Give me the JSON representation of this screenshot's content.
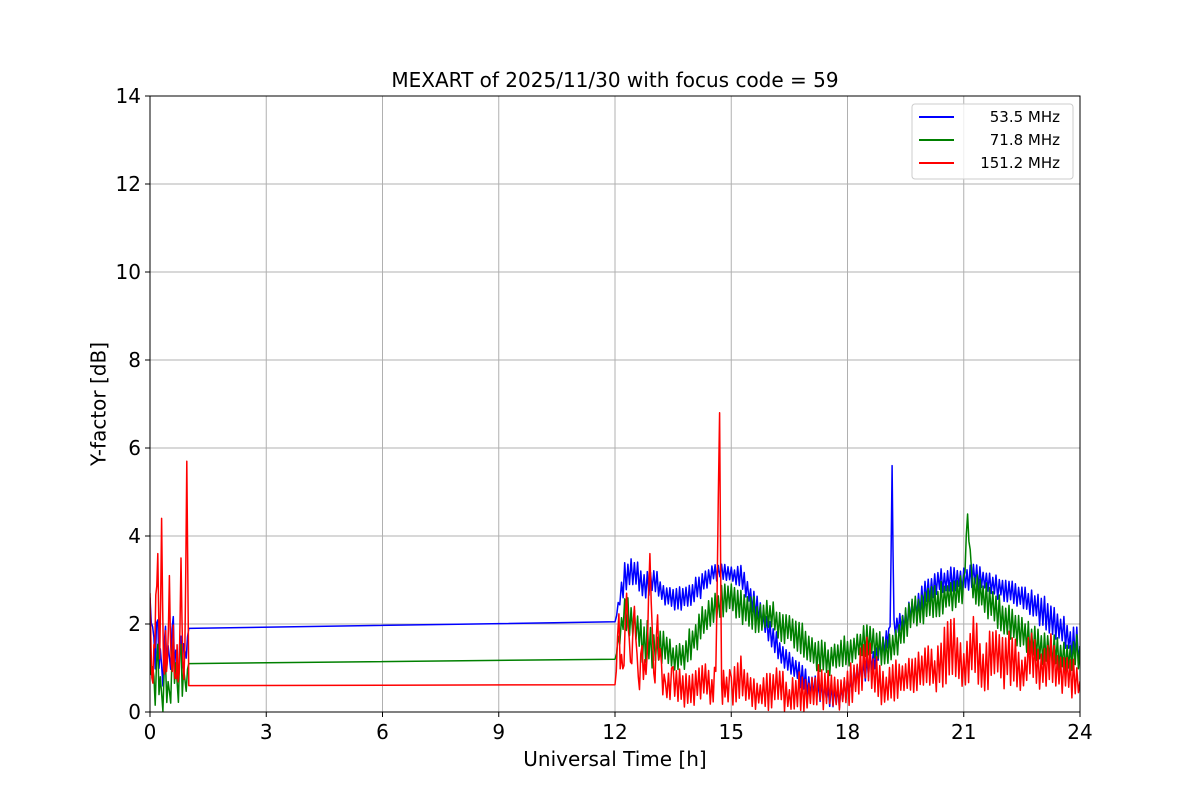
{
  "chart_data": {
    "type": "line",
    "title": "MEXART of 2025/11/30 with focus code = 59",
    "xlabel": "Universal Time [h]",
    "ylabel": "Y-factor [dB]",
    "xlim": [
      0,
      24
    ],
    "ylim": [
      0,
      14
    ],
    "xticks": [
      0,
      3,
      6,
      9,
      12,
      15,
      18,
      21,
      24
    ],
    "yticks": [
      0,
      2,
      4,
      6,
      8,
      10,
      12,
      14
    ],
    "grid": true,
    "legend_position": "top-right",
    "series": [
      {
        "name": "53.5 MHz",
        "color": "#0000ff",
        "x": [
          0.0,
          0.1,
          0.2,
          0.3,
          0.4,
          0.5,
          0.6,
          0.7,
          0.8,
          0.9,
          1.0,
          12.0,
          12.25,
          12.5,
          12.75,
          13.0,
          13.25,
          13.5,
          13.75,
          14.0,
          14.25,
          14.5,
          14.75,
          15.0,
          15.25,
          15.5,
          15.75,
          16.0,
          16.25,
          16.5,
          16.75,
          17.0,
          17.25,
          17.5,
          17.75,
          18.0,
          18.25,
          18.5,
          18.75,
          19.0,
          19.1,
          19.15,
          19.2,
          19.5,
          19.75,
          20.0,
          20.25,
          20.5,
          20.75,
          21.0,
          21.25,
          21.5,
          21.75,
          22.0,
          22.25,
          22.5,
          22.75,
          23.0,
          23.25,
          23.5,
          23.75,
          24.0
        ],
        "y": [
          2.6,
          1.2,
          1.8,
          0.7,
          1.5,
          1.0,
          1.7,
          0.9,
          1.4,
          1.1,
          1.9,
          2.05,
          3.1,
          3.2,
          2.9,
          3.0,
          2.7,
          2.6,
          2.55,
          2.7,
          2.9,
          3.15,
          3.2,
          3.1,
          3.05,
          2.6,
          2.2,
          1.8,
          1.4,
          1.1,
          0.9,
          0.6,
          0.5,
          0.4,
          0.35,
          0.5,
          0.8,
          1.0,
          1.3,
          1.6,
          1.8,
          5.6,
          1.9,
          2.1,
          2.4,
          2.7,
          2.9,
          3.0,
          3.05,
          3.0,
          3.1,
          3.0,
          2.9,
          2.8,
          2.7,
          2.6,
          2.5,
          2.3,
          2.1,
          1.9,
          1.6,
          1.5
        ],
        "band": [
          0,
          0.5,
          0.5,
          0.4,
          0.5,
          0.4,
          0.5,
          0.4,
          0.5,
          0.3,
          0,
          0,
          0.4,
          0.3,
          0.4,
          0.3,
          0.3,
          0.3,
          0.3,
          0.3,
          0.3,
          0.2,
          0.2,
          0.2,
          0.3,
          0.3,
          0.3,
          0.3,
          0.3,
          0.3,
          0.3,
          0.3,
          0.3,
          0.3,
          0.3,
          0.3,
          0.3,
          0.3,
          0.3,
          0.3,
          0.2,
          0,
          0.2,
          0.3,
          0.3,
          0.3,
          0.3,
          0.3,
          0.3,
          0.3,
          0.3,
          0.3,
          0.3,
          0.3,
          0.3,
          0.3,
          0.3,
          0.4,
          0.4,
          0.4,
          0.4,
          0.4
        ]
      },
      {
        "name": "71.8 MHz",
        "color": "#008000",
        "x": [
          0.0,
          0.1,
          0.2,
          0.3,
          0.4,
          0.5,
          0.6,
          0.7,
          0.8,
          0.9,
          1.0,
          12.0,
          12.25,
          12.5,
          12.75,
          13.0,
          13.25,
          13.5,
          13.75,
          14.0,
          14.25,
          14.5,
          14.75,
          15.0,
          15.25,
          15.5,
          15.75,
          16.0,
          16.25,
          16.5,
          16.75,
          17.0,
          17.25,
          17.5,
          17.75,
          18.0,
          18.25,
          18.5,
          18.75,
          19.0,
          19.25,
          19.5,
          19.75,
          20.0,
          20.25,
          20.5,
          20.75,
          21.0,
          21.1,
          21.2,
          21.5,
          21.75,
          22.0,
          22.25,
          22.5,
          22.75,
          23.0,
          23.25,
          23.5,
          23.75,
          24.0
        ],
        "y": [
          1.3,
          0.4,
          1.0,
          0.2,
          0.8,
          0.3,
          1.2,
          0.4,
          1.0,
          0.5,
          1.1,
          1.2,
          2.3,
          2.0,
          1.6,
          1.4,
          1.5,
          1.2,
          1.3,
          1.6,
          2.0,
          2.3,
          2.5,
          2.6,
          2.4,
          2.3,
          2.1,
          2.2,
          2.0,
          1.9,
          1.7,
          1.5,
          1.3,
          1.2,
          1.3,
          1.4,
          1.5,
          1.6,
          1.5,
          1.4,
          1.6,
          2.0,
          2.3,
          2.4,
          2.5,
          2.6,
          2.7,
          2.8,
          4.5,
          2.9,
          2.6,
          2.4,
          2.2,
          2.0,
          1.8,
          1.6,
          1.5,
          1.4,
          1.3,
          1.2,
          1.5
        ],
        "band": [
          0,
          0.5,
          0.6,
          0.3,
          0.6,
          0.3,
          0.6,
          0.4,
          0.6,
          0.4,
          0,
          0,
          0.5,
          0.5,
          0.6,
          0.5,
          0.4,
          0.4,
          0.4,
          0.4,
          0.4,
          0.4,
          0.4,
          0.4,
          0.4,
          0.4,
          0.4,
          0.4,
          0.4,
          0.4,
          0.4,
          0.4,
          0.4,
          0.4,
          0.4,
          0.4,
          0.4,
          0.4,
          0.4,
          0.4,
          0.4,
          0.4,
          0.4,
          0.4,
          0.4,
          0.4,
          0.4,
          0.4,
          0,
          0.4,
          0.4,
          0.4,
          0.4,
          0.4,
          0.4,
          0.4,
          0.4,
          0.4,
          0.4,
          0.4,
          0.5
        ]
      },
      {
        "name": "151.2 MHz",
        "color": "#ff0000",
        "x": [
          0.0,
          0.05,
          0.1,
          0.15,
          0.2,
          0.25,
          0.3,
          0.35,
          0.4,
          0.45,
          0.5,
          0.55,
          0.6,
          0.65,
          0.7,
          0.75,
          0.8,
          0.85,
          0.9,
          0.95,
          1.0,
          12.0,
          12.1,
          12.2,
          12.3,
          12.4,
          12.5,
          12.6,
          12.7,
          12.8,
          12.9,
          13.0,
          13.1,
          13.2,
          13.3,
          13.5,
          13.75,
          14.0,
          14.25,
          14.5,
          14.6,
          14.7,
          14.75,
          14.8,
          15.0,
          15.25,
          15.5,
          15.75,
          16.0,
          16.25,
          16.5,
          16.75,
          17.0,
          17.25,
          17.5,
          17.75,
          18.0,
          18.25,
          18.5,
          18.75,
          19.0,
          19.25,
          19.5,
          19.75,
          20.0,
          20.25,
          20.5,
          20.75,
          21.0,
          21.25,
          21.5,
          21.75,
          22.0,
          22.25,
          22.5,
          22.75,
          23.0,
          23.25,
          23.5,
          23.75,
          24.0
        ],
        "y": [
          2.7,
          0.5,
          1.2,
          2.4,
          3.6,
          1.0,
          4.4,
          0.8,
          1.6,
          0.9,
          3.1,
          0.8,
          1.7,
          0.6,
          1.3,
          0.7,
          3.5,
          0.9,
          1.2,
          5.7,
          0.6,
          0.62,
          1.8,
          0.6,
          2.7,
          0.8,
          2.4,
          0.5,
          1.2,
          0.6,
          3.6,
          0.6,
          1.9,
          0.8,
          0.5,
          0.7,
          0.5,
          0.6,
          0.8,
          0.5,
          0.7,
          6.8,
          0.4,
          0.6,
          0.5,
          0.8,
          0.5,
          0.4,
          0.5,
          0.6,
          0.3,
          0.5,
          0.4,
          0.6,
          0.5,
          0.4,
          0.6,
          0.8,
          1.2,
          0.8,
          0.5,
          0.7,
          0.8,
          0.9,
          1.0,
          0.9,
          1.3,
          1.5,
          1.0,
          1.6,
          0.9,
          1.4,
          1.1,
          1.3,
          0.8,
          1.3,
          0.9,
          1.2,
          0.9,
          0.8,
          0.7
        ],
        "band": [
          0,
          0.3,
          0.4,
          0.3,
          0,
          0.3,
          0,
          0.3,
          0.4,
          0.3,
          0,
          0.3,
          0.4,
          0.3,
          0.4,
          0.3,
          0,
          0.3,
          0.4,
          0,
          0,
          0,
          0.5,
          0.4,
          0,
          0.4,
          0,
          0.4,
          0.5,
          0.4,
          0,
          0.4,
          0.5,
          0.4,
          0.3,
          0.5,
          0.4,
          0.5,
          0.5,
          0.4,
          0.4,
          0,
          0.3,
          0.4,
          0.5,
          0.5,
          0.5,
          0.4,
          0.5,
          0.5,
          0.4,
          0.5,
          0.4,
          0.5,
          0.5,
          0.4,
          0.5,
          0.5,
          0.6,
          0.5,
          0.5,
          0.5,
          0.5,
          0.5,
          0.6,
          0.5,
          0.7,
          0.7,
          0.6,
          0.7,
          0.6,
          0.7,
          0.6,
          0.7,
          0.5,
          0.6,
          0.5,
          0.6,
          0.5,
          0.5,
          0.4
        ]
      }
    ]
  }
}
